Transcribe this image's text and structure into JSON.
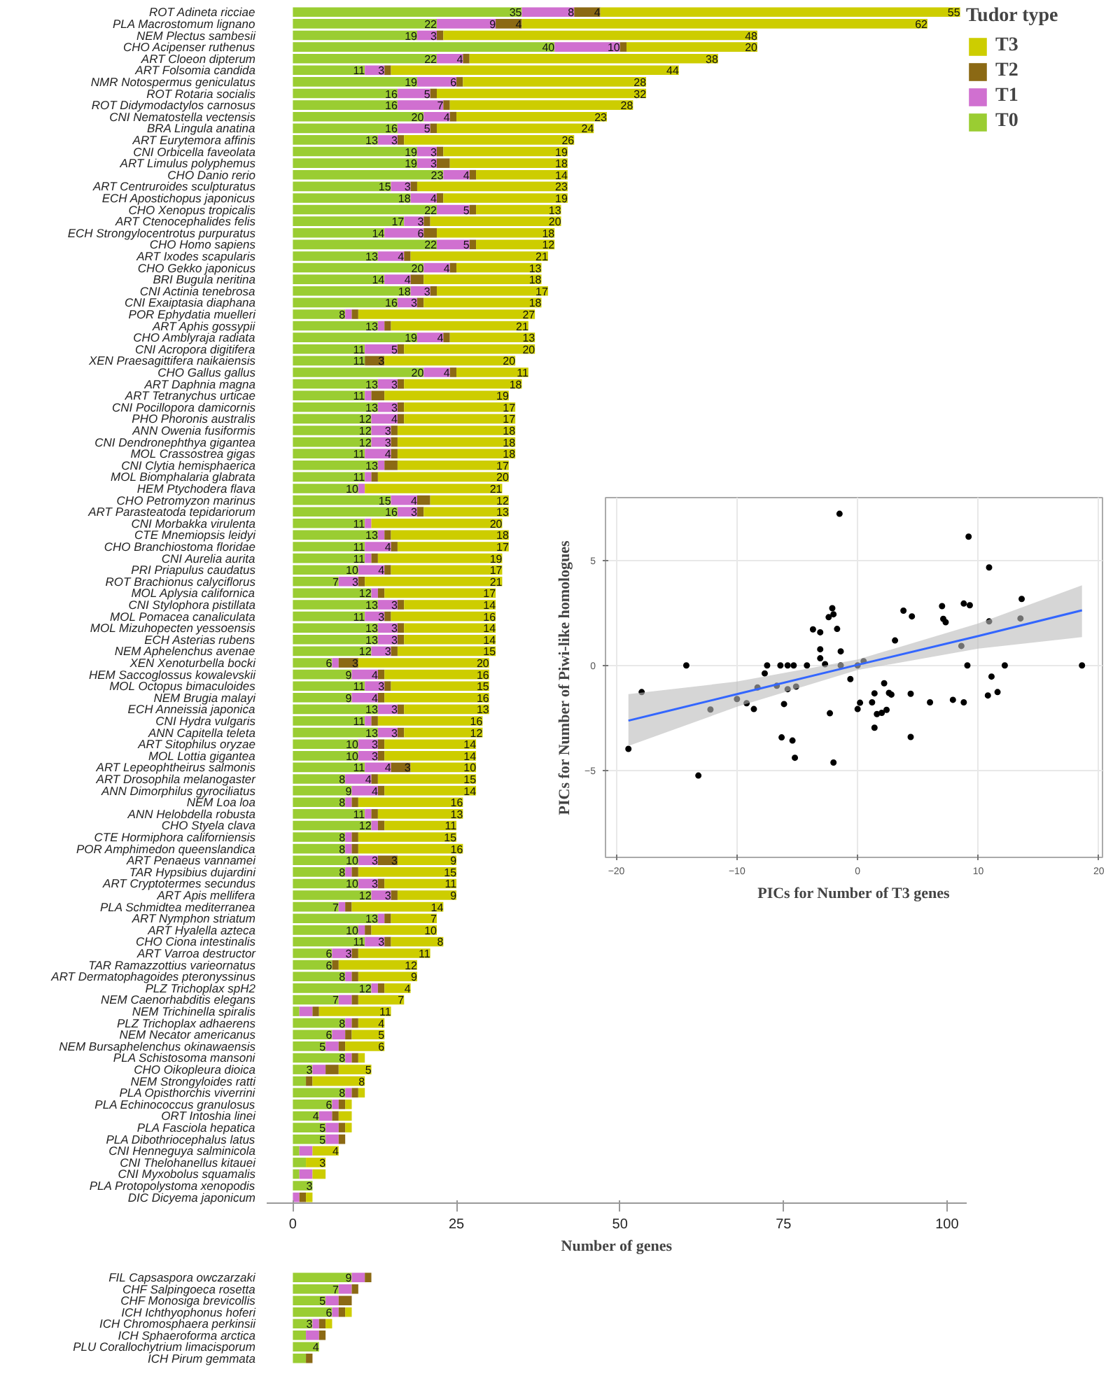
{
  "chart_data": [
    {
      "type": "bar",
      "orientation": "horizontal",
      "stacked": true,
      "categories": [
        "ROT Adineta ricciae",
        "PLA Macrostomum lignano",
        "NEM Plectus sambesii",
        "CHO Acipenser ruthenus",
        "ART Cloeon dipterum",
        "ART Folsomia candida",
        "NMR Notospermus geniculatus",
        "ROT Rotaria socialis",
        "ROT Didymodactylos carnosus",
        "CNI Nematostella vectensis",
        "BRA Lingula anatina",
        "ART Eurytemora affinis",
        "CNI Orbicella faveolata",
        "ART Limulus polyphemus",
        "CHO Danio rerio",
        "ART Centruroides sculpturatus",
        "ECH Apostichopus japonicus",
        "CHO Xenopus tropicalis",
        "ART Ctenocephalides felis",
        "ECH Strongylocentrotus purpuratus",
        "CHO Homo sapiens",
        "ART Ixodes scapularis",
        "CHO Gekko japonicus",
        "BRI Bugula neritina",
        "CNI Actinia tenebrosa",
        "CNI Exaiptasia diaphana",
        "POR Ephydatia muelleri",
        "ART Aphis gossypii",
        "CHO Amblyraja radiata",
        "CNI Acropora digitifera",
        "XEN Praesagittifera naikaiensis",
        "CHO Gallus gallus",
        "ART Daphnia magna",
        "ART Tetranychus urticae",
        "CNI Pocillopora damicornis",
        "PHO Phoronis australis",
        "ANN Owenia fusiformis",
        "CNI Dendronephthya gigantea",
        "MOL Crassostrea gigas",
        "CNI Clytia hemisphaerica",
        "MOL Biomphalaria glabrata",
        "HEM Ptychodera flava",
        "CHO Petromyzon marinus",
        "ART Parasteatoda tepidariorum",
        "CNI Morbakka virulenta",
        "CTE Mnemiopsis leidyi",
        "CHO Branchiostoma floridae",
        "CNI Aurelia aurita",
        "PRI Priapulus caudatus",
        "ROT Brachionus calyciflorus",
        "MOL Aplysia californica",
        "CNI Stylophora pistillata",
        "MOL Pomacea canaliculata",
        "MOL Mizuhopecten yessoensis",
        "ECH Asterias rubens",
        "NEM Aphelenchus avenae",
        "XEN Xenoturbella bocki",
        "HEM Saccoglossus kowalevskii",
        "MOL Octopus bimaculoides",
        "NEM Brugia malayi",
        "ECH Anneissia japonica",
        "CNI Hydra vulgaris",
        "ANN Capitella teleta",
        "ART Sitophilus oryzae",
        "MOL Lottia gigantea",
        "ART Lepeophtheirus salmonis",
        "ART Drosophila melanogaster",
        "ANN Dimorphilus gyrociliatus",
        "NEM Loa loa",
        "ANN Helobdella robusta",
        "CHO Styela clava",
        "CTE Hormiphora californiensis",
        "POR Amphimedon queenslandica",
        "ART Penaeus vannamei",
        "TAR Hypsibius dujardini",
        "ART Cryptotermes secundus",
        "ART Apis mellifera",
        "PLA Schmidtea mediterranea",
        "ART Nymphon striatum",
        "ART Hyalella azteca",
        "CHO Ciona intestinalis",
        "ART Varroa destructor",
        "TAR Ramazzottius varieornatus",
        "ART Dermatophagoides pteronyssinus",
        "PLZ Trichoplax spH2",
        "NEM Caenorhabditis elegans",
        "NEM Trichinella spiralis",
        "PLZ Trichoplax adhaerens",
        "NEM Necator americanus",
        "NEM Bursaphelenchus okinawaensis",
        "PLA Schistosoma mansoni",
        "CHO Oikopleura dioica",
        "NEM Strongyloides ratti",
        "PLA Opisthorchis viverrini",
        "PLA Echinococcus granulosus",
        "ORT Intoshia linei",
        "PLA Fasciola hepatica",
        "PLA Dibothriocephalus latus",
        "CNI Henneguya salminicola",
        "CNI Thelohanellus kitauei",
        "CNI Myxobolus squamalis",
        "PLA Protopolystoma xenopodis",
        "DIC Dicyema japonicum"
      ],
      "series": [
        {
          "name": "T0",
          "color": "#9acd32",
          "values": [
            35,
            22,
            19,
            40,
            22,
            11,
            19,
            16,
            16,
            20,
            16,
            13,
            19,
            19,
            23,
            15,
            18,
            22,
            17,
            14,
            22,
            13,
            20,
            14,
            18,
            16,
            8,
            13,
            19,
            11,
            11,
            20,
            13,
            11,
            13,
            12,
            12,
            12,
            11,
            13,
            11,
            10,
            15,
            16,
            11,
            13,
            11,
            11,
            10,
            7,
            12,
            13,
            11,
            13,
            13,
            12,
            6,
            9,
            11,
            9,
            13,
            11,
            13,
            10,
            10,
            11,
            8,
            9,
            8,
            11,
            12,
            8,
            8,
            10,
            8,
            10,
            12,
            7,
            13,
            10,
            11,
            6,
            6,
            8,
            12,
            7,
            1,
            8,
            6,
            5,
            8,
            3,
            2,
            8,
            6,
            4,
            5,
            5,
            1,
            2,
            1,
            3,
            0
          ],
          "value_labels": [
            "35",
            "22",
            "19",
            "40",
            "22",
            "11",
            "19",
            "16",
            "16",
            "20",
            "16",
            "13",
            "19",
            "19",
            "23",
            "15",
            "18",
            "22",
            "17",
            "14",
            "22",
            "13",
            "20",
            "14",
            "18",
            "16",
            "8",
            "13",
            "19",
            "11",
            "11",
            "20",
            "13",
            "11",
            "13",
            "12",
            "12",
            "12",
            "11",
            "13",
            "11",
            "10",
            "15",
            "16",
            "11",
            "13",
            "11",
            "11",
            "10",
            "7",
            "12",
            "13",
            "11",
            "13",
            "13",
            "12",
            "6",
            "9",
            "11",
            "9",
            "13",
            "11",
            "13",
            "10",
            "10",
            "11",
            "8",
            "9",
            "8",
            "11",
            "12",
            "8",
            "8",
            "10",
            "8",
            "10",
            "12",
            "7",
            "13",
            "10",
            "11",
            "6",
            "6",
            "8",
            "12",
            "7",
            null,
            "8",
            "6",
            "5",
            "8",
            "3",
            null,
            "8",
            "6",
            "4",
            "5",
            "5",
            null,
            null,
            null,
            "3",
            null
          ]
        },
        {
          "name": "T1",
          "color": "#d070d0",
          "values": [
            8,
            9,
            3,
            10,
            4,
            3,
            6,
            5,
            7,
            4,
            5,
            3,
            3,
            3,
            4,
            3,
            4,
            5,
            3,
            6,
            5,
            4,
            4,
            4,
            3,
            3,
            1,
            1,
            4,
            5,
            0,
            4,
            3,
            1,
            3,
            4,
            3,
            3,
            4,
            1,
            1,
            1,
            4,
            3,
            1,
            1,
            4,
            1,
            4,
            3,
            1,
            3,
            3,
            3,
            3,
            3,
            1,
            4,
            3,
            4,
            3,
            1,
            3,
            3,
            3,
            4,
            4,
            4,
            1,
            1,
            1,
            1,
            1,
            3,
            1,
            3,
            3,
            1,
            1,
            1,
            3,
            3,
            0,
            1,
            1,
            2,
            2,
            1,
            2,
            2,
            1,
            2,
            0,
            1,
            1,
            2,
            2,
            2,
            2,
            0,
            2,
            0,
            1
          ],
          "value_labels": [
            "8",
            "9",
            "3",
            "10",
            "4",
            "3",
            "6",
            "5",
            "7",
            "4",
            "5",
            "3",
            "3",
            "3",
            "4",
            "3",
            "4",
            "5",
            "3",
            "6",
            "5",
            "4",
            "4",
            "4",
            "3",
            "3",
            null,
            null,
            "4",
            "5",
            null,
            "4",
            "3",
            null,
            "3",
            "4",
            "3",
            "3",
            "4",
            null,
            null,
            null,
            "4",
            "3",
            null,
            null,
            "4",
            null,
            "4",
            "3",
            null,
            "3",
            "3",
            "3",
            "3",
            "3",
            null,
            "4",
            "3",
            "4",
            "3",
            null,
            "3",
            "3",
            "3",
            "4",
            "4",
            "4",
            null,
            null,
            null,
            null,
            null,
            "3",
            null,
            "3",
            "3",
            null,
            null,
            null,
            "3",
            "3",
            null,
            null,
            null,
            null,
            null,
            null,
            null,
            null,
            null,
            null,
            null,
            null,
            null,
            null,
            null,
            null,
            null,
            null,
            null,
            null,
            null
          ]
        },
        {
          "name": "T2",
          "color": "#8b6914",
          "values": [
            4,
            4,
            1,
            1,
            1,
            1,
            1,
            1,
            1,
            1,
            1,
            1,
            1,
            2,
            1,
            1,
            1,
            1,
            1,
            2,
            1,
            1,
            1,
            2,
            1,
            1,
            1,
            1,
            1,
            1,
            3,
            1,
            1,
            2,
            1,
            1,
            1,
            1,
            1,
            2,
            1,
            0,
            2,
            1,
            0,
            1,
            1,
            1,
            1,
            1,
            1,
            1,
            1,
            1,
            1,
            1,
            3,
            1,
            1,
            1,
            1,
            1,
            1,
            1,
            1,
            3,
            1,
            1,
            1,
            1,
            1,
            1,
            1,
            3,
            1,
            1,
            1,
            1,
            1,
            1,
            1,
            1,
            1,
            1,
            1,
            1,
            1,
            1,
            1,
            1,
            1,
            2,
            1,
            1,
            1,
            1,
            1,
            1,
            0,
            0,
            0,
            0,
            1
          ],
          "value_labels": [
            "4",
            "4",
            null,
            null,
            null,
            null,
            null,
            null,
            null,
            null,
            null,
            null,
            null,
            null,
            null,
            null,
            null,
            null,
            null,
            null,
            null,
            null,
            null,
            null,
            null,
            null,
            null,
            null,
            null,
            null,
            "3",
            null,
            null,
            null,
            null,
            null,
            null,
            null,
            null,
            null,
            null,
            null,
            null,
            null,
            null,
            null,
            null,
            null,
            null,
            null,
            null,
            null,
            null,
            null,
            null,
            null,
            "3",
            null,
            null,
            null,
            null,
            null,
            null,
            null,
            null,
            "3",
            null,
            null,
            null,
            null,
            null,
            null,
            null,
            "3",
            null,
            null,
            null,
            null,
            null,
            null,
            null,
            null,
            null,
            null,
            null,
            null,
            null,
            null,
            null,
            null,
            null,
            null,
            null,
            null,
            null,
            null,
            null,
            null,
            null,
            null,
            null,
            null,
            null
          ]
        },
        {
          "name": "T3",
          "color": "#cdcd00",
          "values": [
            55,
            62,
            48,
            20,
            38,
            44,
            28,
            32,
            28,
            23,
            24,
            26,
            19,
            18,
            14,
            23,
            19,
            13,
            20,
            18,
            12,
            21,
            13,
            18,
            17,
            18,
            27,
            21,
            13,
            20,
            20,
            11,
            18,
            19,
            17,
            17,
            18,
            18,
            18,
            17,
            20,
            21,
            12,
            13,
            20,
            18,
            17,
            19,
            17,
            21,
            17,
            14,
            16,
            14,
            14,
            15,
            20,
            16,
            15,
            16,
            13,
            16,
            12,
            14,
            14,
            10,
            15,
            14,
            16,
            13,
            11,
            15,
            16,
            9,
            15,
            11,
            9,
            14,
            7,
            10,
            8,
            11,
            12,
            9,
            4,
            7,
            11,
            4,
            5,
            6,
            1,
            5,
            8,
            1,
            1,
            2,
            1,
            0,
            4,
            3,
            2,
            0,
            1
          ],
          "value_labels": [
            "55",
            "62",
            "48",
            "20",
            "38",
            "44",
            "28",
            "32",
            "28",
            "23",
            "24",
            "26",
            "19",
            "18",
            "14",
            "23",
            "19",
            "13",
            "20",
            "18",
            "12",
            "21",
            "13",
            "18",
            "17",
            "18",
            "27",
            "21",
            "13",
            "20",
            "20",
            "11",
            "18",
            "19",
            "17",
            "17",
            "18",
            "18",
            "18",
            "17",
            "20",
            "21",
            "12",
            "13",
            "20",
            "18",
            "17",
            "19",
            "17",
            "21",
            "17",
            "14",
            "16",
            "14",
            "14",
            "15",
            "20",
            "16",
            "15",
            "16",
            "13",
            "16",
            "12",
            "14",
            "14",
            "10",
            "15",
            "14",
            "16",
            "13",
            "11",
            "15",
            "16",
            "9",
            "15",
            "11",
            "9",
            "14",
            "7",
            "10",
            "8",
            "11",
            "12",
            "9",
            "4",
            "7",
            "11",
            "4",
            "5",
            "6",
            null,
            "5",
            "8",
            null,
            null,
            null,
            null,
            null,
            "4",
            "3",
            null,
            null,
            null
          ]
        }
      ],
      "xlim": [
        -4,
        103
      ],
      "xticks": [
        0,
        25,
        50,
        75,
        100
      ],
      "xlabel": "Number of genes",
      "legend_title": "Tudor type",
      "legend": "top right"
    },
    {
      "type": "bar",
      "orientation": "horizontal",
      "stacked": true,
      "tick_labels": "y",
      "categories": [
        "FIL Capsaspora owczarzaki",
        "CHF Salpingoeca rosetta",
        "CHF Monosiga brevicollis",
        "ICH Ichthyophonus hoferi",
        "ICH Chromosphaera perkinsii",
        "ICH Sphaeroforma arctica",
        "PLU Corallochytrium limacisporum",
        "ICH Pirum gemmata"
      ],
      "series": [
        {
          "color": "#9acd32",
          "values": [
            9,
            7,
            5,
            6,
            3,
            2,
            4,
            2
          ],
          "value_labels": [
            "9",
            "7",
            "5",
            "6",
            "3",
            null,
            "4",
            null
          ]
        },
        {
          "color": "#d070d0",
          "values": [
            2,
            2,
            2,
            1,
            1,
            2,
            0,
            0
          ]
        },
        {
          "color": "#8b6914",
          "values": [
            1,
            1,
            2,
            1,
            1,
            1,
            0,
            1
          ]
        },
        {
          "color": "#cdcd00",
          "values": [
            0,
            0,
            0,
            1,
            1,
            0,
            0,
            0
          ]
        }
      ]
    },
    {
      "type": "scatter",
      "xlabel": "PICs for Number of T3 genes",
      "ylabel": "PICs for Number of Piwi-like homologues",
      "xlim": [
        -20.9,
        20.3
      ],
      "ylim": [
        -9.15,
        8.0
      ],
      "xticks": [
        -20,
        -10,
        0,
        10,
        20
      ],
      "yticks": [
        -5,
        0,
        5
      ],
      "grid": true,
      "series": [
        {
          "marker": "circle",
          "color": "#000000",
          "x": [
            -19.0,
            -17.9,
            -14.2,
            -13.2,
            -12.2,
            -10.0,
            -9.2,
            -8.6,
            -8.3,
            -7.7,
            -7.5,
            -6.7,
            -6.4,
            -6.3,
            -6.1,
            -5.8,
            -5.8,
            -5.4,
            -5.3,
            -5.1,
            -5.2,
            -4.2,
            -3.7,
            -3.1,
            -3.1,
            -3.1,
            -2.7,
            -2.4,
            -2.1,
            -2.0,
            -2.3,
            -2.0,
            -1.7,
            -1.5,
            -1.4,
            -1.4,
            -0.6,
            0.0,
            0.5,
            0.0,
            0.2,
            1.2,
            1.4,
            1.4,
            1.6,
            2.0,
            2.2,
            2.4,
            2.6,
            2.8,
            3.1,
            3.8,
            4.4,
            4.4,
            4.5,
            6.0,
            7.0,
            7.1,
            7.3,
            7.9,
            8.6,
            8.8,
            8.8,
            9.1,
            9.2,
            9.3,
            10.8,
            10.9,
            10.9,
            11.1,
            11.6,
            12.2,
            13.5,
            13.6,
            18.6
          ],
          "values": [
            -3.98,
            -1.27,
            0,
            -5.25,
            -2.1,
            -1.6,
            -1.8,
            -2.08,
            -1.05,
            -0.38,
            0,
            -0.97,
            0,
            -3.43,
            -1.84,
            0,
            -1.13,
            -3.58,
            0,
            -1.01,
            -4.4,
            0,
            1.72,
            1.58,
            0.77,
            0.34,
            0.06,
            2.3,
            2.73,
            2.44,
            -2.28,
            -4.63,
            1.74,
            7.23,
            0.67,
            0,
            -0.65,
            0,
            0.2,
            -2.08,
            -1.78,
            -1.76,
            -1.33,
            -2.97,
            -2.32,
            -2.26,
            -0.85,
            -2.12,
            -1.31,
            -1.39,
            1.19,
            2.61,
            -1.35,
            -3.41,
            2.34,
            -1.76,
            2.83,
            2.22,
            2.06,
            -1.64,
            0.93,
            2.95,
            -1.76,
            0,
            6.14,
            2.87,
            -1.43,
            4.67,
            2.1,
            -0.53,
            -1.27,
            0,
            2.24,
            3.17,
            0
          ]
        },
        {
          "type": "line",
          "color": "#3366ff",
          "x": [
            -19.0,
            -10.0,
            0.0,
            10.0,
            18.6
          ],
          "values": [
            -2.63,
            -1.37,
            0.03,
            1.4,
            2.63
          ],
          "lower": [
            -3.84,
            -1.97,
            -0.22,
            0.8,
            1.35
          ],
          "upper": [
            -1.37,
            -0.77,
            0.28,
            2.0,
            3.82
          ]
        }
      ]
    }
  ]
}
